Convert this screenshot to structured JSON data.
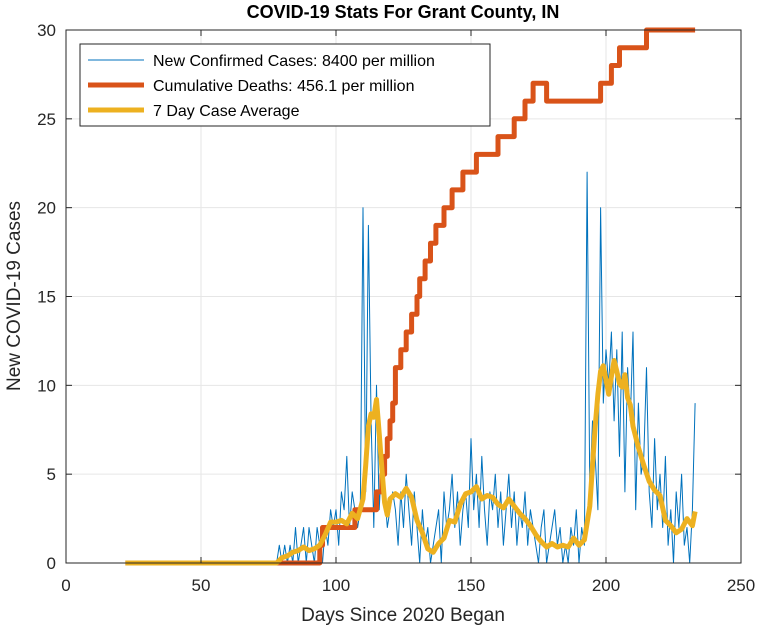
{
  "chart_data": {
    "type": "line",
    "title": "COVID-19 Stats For Grant County, IN",
    "xlabel": "Days Since 2020 Began",
    "ylabel": "New COVID-19 Cases",
    "xlim": [
      0,
      250
    ],
    "ylim": [
      0,
      30
    ],
    "xticks": [
      0,
      50,
      100,
      150,
      200,
      250
    ],
    "yticks": [
      0,
      5,
      10,
      15,
      20,
      25,
      30
    ],
    "grid": true,
    "legend_position": "top-left",
    "series": [
      {
        "name": "New Confirmed Cases: 8400 per million",
        "color": "#0072BD",
        "style": "thin",
        "x": [
          22,
          30,
          40,
          50,
          60,
          70,
          78,
          79,
          80,
          81,
          82,
          83,
          84,
          85,
          86,
          87,
          88,
          89,
          90,
          91,
          92,
          93,
          94,
          95,
          96,
          97,
          98,
          99,
          100,
          101,
          102,
          103,
          104,
          105,
          106,
          107,
          108,
          109,
          110,
          111,
          112,
          113,
          114,
          115,
          116,
          117,
          118,
          119,
          120,
          121,
          122,
          123,
          124,
          125,
          126,
          127,
          128,
          129,
          130,
          131,
          132,
          133,
          134,
          135,
          136,
          137,
          138,
          139,
          140,
          141,
          142,
          143,
          144,
          145,
          146,
          147,
          148,
          149,
          150,
          151,
          152,
          153,
          154,
          155,
          156,
          157,
          158,
          159,
          160,
          161,
          162,
          163,
          164,
          165,
          166,
          167,
          168,
          169,
          170,
          171,
          172,
          173,
          174,
          175,
          176,
          177,
          178,
          179,
          180,
          181,
          182,
          183,
          184,
          185,
          186,
          187,
          188,
          189,
          190,
          191,
          192,
          193,
          194,
          195,
          196,
          197,
          198,
          199,
          200,
          201,
          202,
          203,
          204,
          205,
          206,
          207,
          208,
          209,
          210,
          211,
          212,
          213,
          214,
          215,
          216,
          217,
          218,
          219,
          220,
          221,
          222,
          223,
          224,
          225,
          226,
          227,
          228,
          229,
          230,
          231,
          232,
          233
        ],
        "y": [
          0,
          0,
          0,
          0,
          0,
          0,
          0,
          1,
          0,
          1,
          0,
          1,
          0,
          2,
          0,
          1,
          2,
          0,
          2,
          1,
          0,
          2,
          1,
          0,
          2,
          1,
          3,
          2,
          3,
          1,
          4,
          3,
          6,
          2,
          4,
          3,
          2,
          3,
          20,
          4,
          19,
          8,
          2,
          10,
          3,
          6,
          4,
          2,
          3,
          4,
          3,
          1,
          4,
          2,
          5,
          3,
          1,
          4,
          2,
          0,
          3,
          1,
          2,
          0,
          1,
          2,
          3,
          0,
          4,
          2,
          3,
          5,
          2,
          4,
          1,
          3,
          4,
          2,
          7,
          3,
          5,
          2,
          6,
          3,
          1,
          4,
          3,
          5,
          2,
          4,
          1,
          3,
          5,
          2,
          4,
          1,
          3,
          2,
          4,
          1,
          3,
          2,
          1,
          0,
          2,
          3,
          0,
          1,
          2,
          3,
          1,
          2,
          0,
          1,
          0,
          2,
          1,
          3,
          0,
          2,
          1,
          22,
          4,
          8,
          6,
          3,
          20,
          9,
          12,
          10,
          13,
          8,
          12,
          6,
          13,
          4,
          11,
          8,
          13,
          3,
          9,
          5,
          6,
          11,
          4,
          2,
          7,
          3,
          5,
          2,
          6,
          1,
          3,
          0,
          4,
          2,
          5,
          1,
          2,
          0,
          3,
          9
        ]
      },
      {
        "name": "Cumulative Deaths: 456.1 per million",
        "color": "#D95319",
        "style": "thick",
        "x": [
          22,
          94,
          94,
          95,
          95,
          107,
          107,
          115,
          115,
          117,
          117,
          118,
          118,
          119,
          119,
          120,
          120,
          121,
          121,
          122,
          122,
          124,
          124,
          126,
          126,
          128,
          128,
          130,
          130,
          131,
          131,
          133,
          133,
          135,
          135,
          137,
          137,
          140,
          140,
          143,
          143,
          147,
          147,
          152,
          152,
          160,
          160,
          166,
          166,
          170,
          170,
          173,
          173,
          178,
          178,
          198,
          198,
          202,
          202,
          205,
          205,
          215,
          215,
          218,
          218,
          225,
          225,
          233
        ],
        "y": [
          0,
          0,
          1,
          1,
          2,
          2,
          3,
          3,
          4,
          4,
          5,
          5,
          6,
          6,
          7,
          7,
          8,
          8,
          9,
          9,
          11,
          11,
          12,
          12,
          13,
          13,
          14,
          14,
          15,
          15,
          16,
          16,
          17,
          17,
          18,
          18,
          19,
          19,
          20,
          20,
          21,
          21,
          22,
          22,
          23,
          23,
          24,
          24,
          25,
          25,
          26,
          26,
          27,
          27,
          26,
          26,
          27,
          27,
          28,
          28,
          29,
          29,
          30,
          30,
          30,
          30,
          30,
          30
        ]
      },
      {
        "name": "7 Day Case Average",
        "color": "#EDB120",
        "style": "thick",
        "x": [
          22,
          30,
          40,
          50,
          60,
          70,
          78,
          80,
          82,
          84,
          86,
          88,
          90,
          92,
          94,
          96,
          98,
          100,
          102,
          104,
          106,
          108,
          110,
          111,
          112,
          113,
          114,
          115,
          116,
          117,
          118,
          119,
          120,
          122,
          124,
          126,
          128,
          130,
          132,
          134,
          136,
          138,
          140,
          142,
          144,
          146,
          148,
          150,
          152,
          154,
          156,
          158,
          160,
          162,
          164,
          166,
          168,
          170,
          172,
          174,
          176,
          178,
          180,
          182,
          184,
          186,
          188,
          190,
          192,
          194,
          196,
          197,
          198,
          199,
          200,
          201,
          202,
          203,
          204,
          205,
          206,
          207,
          208,
          209,
          210,
          212,
          214,
          216,
          218,
          220,
          222,
          224,
          226,
          228,
          230,
          232,
          233
        ],
        "y": [
          0,
          0,
          0,
          0,
          0,
          0,
          0,
          0.3,
          0.4,
          0.6,
          0.7,
          0.9,
          0.7,
          0.8,
          1.0,
          1.6,
          2.3,
          2.3,
          2.4,
          2.2,
          2.8,
          2.5,
          3.6,
          5.5,
          7.7,
          8.4,
          8.2,
          9.2,
          7.3,
          5.3,
          3.4,
          2.7,
          3.6,
          3.9,
          3.7,
          4.2,
          3.7,
          2.4,
          1.7,
          0.8,
          0.6,
          1.1,
          1.4,
          2.4,
          2.3,
          3.3,
          3.9,
          4.0,
          4.3,
          3.6,
          3.8,
          3.7,
          3.3,
          3.1,
          3.6,
          3.2,
          2.8,
          2.5,
          2.1,
          1.6,
          1.2,
          0.9,
          1.1,
          0.9,
          1.0,
          0.9,
          1.4,
          1.0,
          1.3,
          3.2,
          7.7,
          9.5,
          10.8,
          11.1,
          10.3,
          9.5,
          10.5,
          11.4,
          10.8,
          10.1,
          9.9,
          10.6,
          9.3,
          8.9,
          7.7,
          6.5,
          5.5,
          4.6,
          4.1,
          3.8,
          2.4,
          2.1,
          1.7,
          1.9,
          2.5,
          2.1,
          2.9
        ]
      }
    ]
  }
}
